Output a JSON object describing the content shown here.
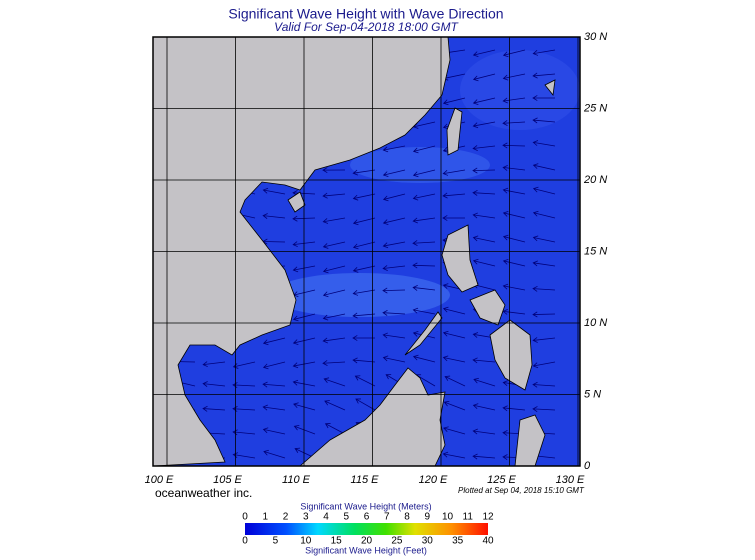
{
  "header": {
    "title": "Significant Wave Height with Wave Direction",
    "subtitle": "Valid For Sep-04-2018 18:00 GMT"
  },
  "map": {
    "lon_ticks": [
      {
        "value": 100,
        "label": "100 E"
      },
      {
        "value": 105,
        "label": "105 E"
      },
      {
        "value": 110,
        "label": "110 E"
      },
      {
        "value": 115,
        "label": "115 E"
      },
      {
        "value": 120,
        "label": "120 E"
      },
      {
        "value": 125,
        "label": "125 E"
      },
      {
        "value": 130,
        "label": "130 E"
      }
    ],
    "lat_ticks": [
      {
        "value": 0,
        "label": "0"
      },
      {
        "value": 5,
        "label": "5 N"
      },
      {
        "value": 10,
        "label": "10 N"
      },
      {
        "value": 15,
        "label": "15 N"
      },
      {
        "value": 20,
        "label": "20 N"
      },
      {
        "value": 25,
        "label": "25 N"
      },
      {
        "value": 30,
        "label": "30 N"
      }
    ]
  },
  "footer": {
    "credit": "oceanweather inc.",
    "plotted": "Plotted at Sep 04, 2018 15:10 GMT"
  },
  "colorbar": {
    "meters_title": "Significant Wave Height (Meters)",
    "meters_ticks": [
      0,
      1,
      2,
      3,
      4,
      5,
      6,
      7,
      8,
      9,
      10,
      11,
      12
    ],
    "feet_title": "Significant Wave Height (Feet)",
    "feet_ticks": [
      0,
      5,
      10,
      15,
      20,
      25,
      30,
      35,
      40
    ]
  }
}
